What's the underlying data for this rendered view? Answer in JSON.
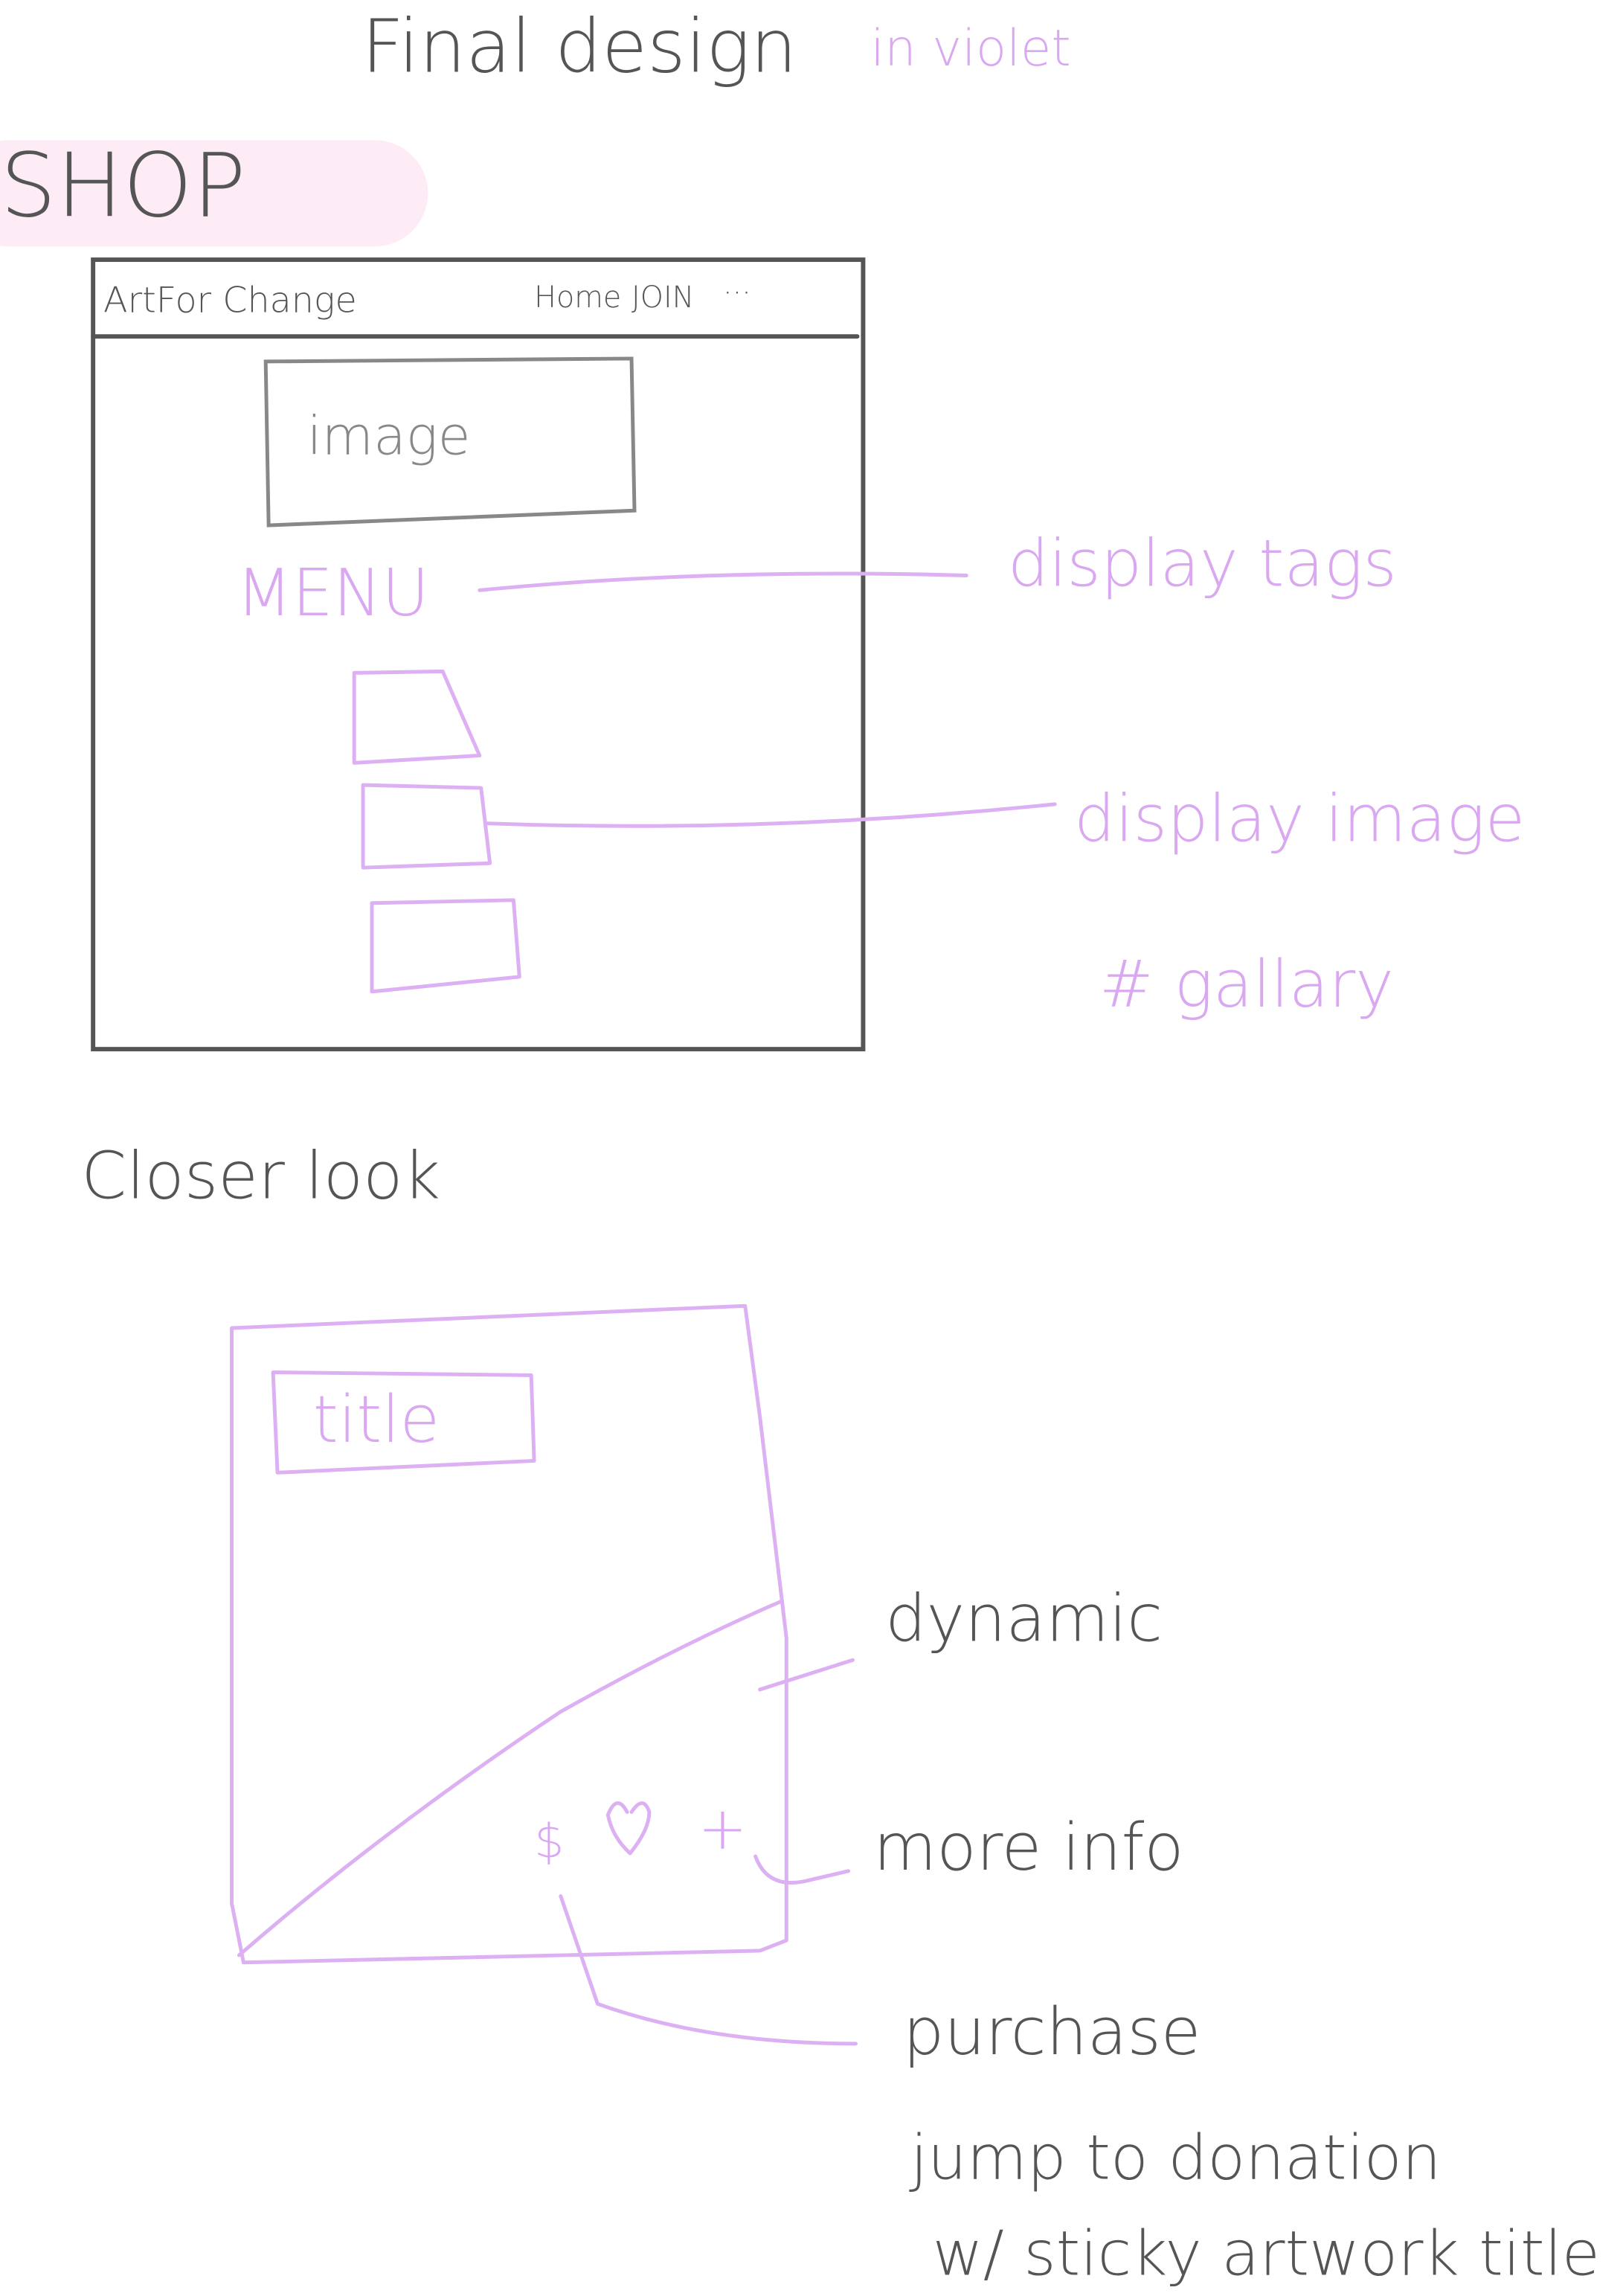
{
  "header": {
    "title": "Final design",
    "note": "in violet"
  },
  "section": "SHOP",
  "wireframe": {
    "brand": "ArtFor Change",
    "nav": [
      "Home",
      "JOIN",
      "···"
    ],
    "image": "image",
    "menu": "MENU"
  },
  "annotations": {
    "tags": "display tags",
    "image": "display image",
    "gallery": "# gallary"
  },
  "closer_look": {
    "heading": "Closer look",
    "card_title": "title",
    "icons": [
      "$",
      "+"
    ],
    "notes": [
      "dynamic",
      "more info",
      "purchase",
      "jump to donation",
      "w/ sticky artwork title"
    ]
  }
}
